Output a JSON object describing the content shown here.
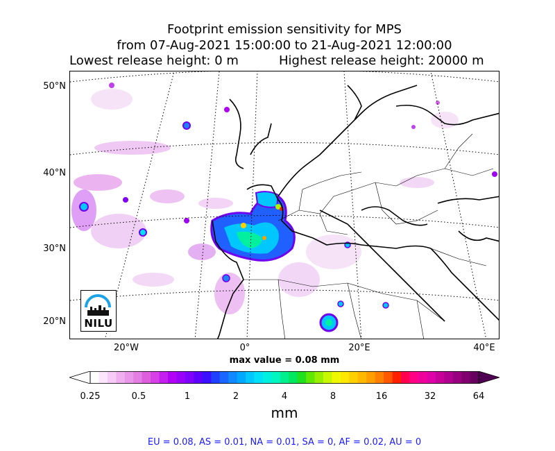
{
  "title": {
    "line1": "Footprint emission sensitivity for MPS",
    "line2": "from 07-Aug-2021 15:00:00 to 21-Aug-2021 12:00:00",
    "lowest": "Lowest release height: 0 m",
    "highest": "Highest release height: 20000 m"
  },
  "axes": {
    "lat_labels": [
      "50°N",
      "40°N",
      "30°N",
      "20°N"
    ],
    "lon_labels": [
      "20°W",
      "0°",
      "20°E",
      "40°E"
    ]
  },
  "logo": {
    "text": "NILU",
    "name": "nilu-logo"
  },
  "max_value": "max value = 0.08 mm",
  "colorbar": {
    "ticks": [
      "0.25",
      "0.5",
      "1",
      "2",
      "4",
      "8",
      "16",
      "32",
      "64"
    ],
    "unit": "mm",
    "colors": [
      "#ffffff",
      "#fbe6fb",
      "#f6ccf6",
      "#f0b0f0",
      "#ea96ea",
      "#e47de4",
      "#dd5fdd",
      "#d640e6",
      "#c51ff0",
      "#b000f5",
      "#9a00f8",
      "#7f00fb",
      "#5e00fd",
      "#3a10ff",
      "#2040ff",
      "#1a66ff",
      "#1088ff",
      "#00a8ff",
      "#00c8ff",
      "#00e0f8",
      "#00f0e0",
      "#00f8c0",
      "#00f090",
      "#00e860",
      "#20e020",
      "#60e800",
      "#98f000",
      "#c8f800",
      "#f0f800",
      "#ffe800",
      "#ffd000",
      "#ffb800",
      "#ffa000",
      "#ff8000",
      "#ff5800",
      "#ff2000",
      "#ff0050",
      "#ff0088",
      "#f0009a",
      "#e000a8",
      "#c8009a",
      "#b00090",
      "#980080",
      "#800070",
      "#680060"
    ]
  },
  "regions_text": "EU = 0.08,  AS = 0.01,  NA = 0.01,  SA = 0,  AF = 0.02,  AU = 0"
}
